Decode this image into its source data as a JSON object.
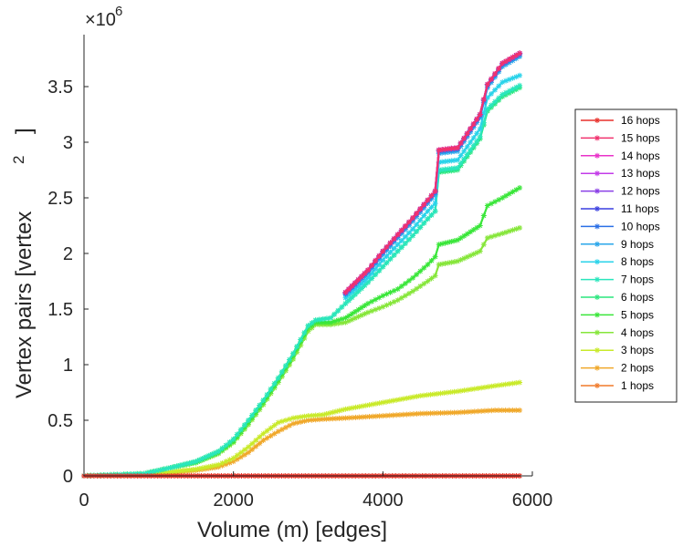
{
  "chart_data": {
    "type": "line",
    "xlabel": "Volume (m) [edges]",
    "ylabel": "Vertex pairs [vertex",
    "ylabel_superscript": "2",
    "ylabel_close": "]",
    "y_multiplier_base": "×10",
    "y_multiplier_exp": "6",
    "xlim": [
      0,
      6000
    ],
    "ylim": [
      0,
      3.95
    ],
    "xticks": [
      "0",
      "2000",
      "4000",
      "6000"
    ],
    "yticks": [
      "0",
      "0.5",
      "1",
      "1.5",
      "2",
      "2.5",
      "3",
      "3.5"
    ],
    "legend_placement": "outside-right",
    "series": [
      {
        "name": "16 hops",
        "color": "#e8312b",
        "x": [
          0,
          5830
        ],
        "y": [
          0,
          0
        ]
      },
      {
        "name": "15 hops",
        "color": "#f0326e",
        "x": [
          3500,
          3800,
          4000,
          4200,
          4400,
          4600,
          4700,
          4750,
          5000,
          5300,
          5400,
          5600,
          5830
        ],
        "y": [
          1.65,
          1.85,
          2.02,
          2.17,
          2.32,
          2.48,
          2.56,
          2.93,
          2.95,
          3.25,
          3.52,
          3.71,
          3.8
        ]
      },
      {
        "name": "14 hops",
        "color": "#e933c9",
        "x": [
          3500,
          3800,
          4000,
          4200,
          4400,
          4600,
          4700,
          4750,
          5000,
          5300,
          5400,
          5600,
          5830
        ],
        "y": [
          1.65,
          1.85,
          2.02,
          2.17,
          2.32,
          2.48,
          2.56,
          2.93,
          2.95,
          3.25,
          3.52,
          3.71,
          3.8
        ]
      },
      {
        "name": "13 hops",
        "color": "#c33be8",
        "x": [
          3500,
          3800,
          4000,
          4200,
          4400,
          4600,
          4700,
          4750,
          5000,
          5300,
          5400,
          5600,
          5830
        ],
        "y": [
          1.65,
          1.85,
          2.02,
          2.17,
          2.32,
          2.48,
          2.56,
          2.93,
          2.95,
          3.25,
          3.52,
          3.71,
          3.8
        ]
      },
      {
        "name": "12 hops",
        "color": "#8a3fe6",
        "x": [
          3500,
          3800,
          4000,
          4200,
          4400,
          4600,
          4700,
          4750,
          5000,
          5300,
          5400,
          5600,
          5830
        ],
        "y": [
          1.65,
          1.85,
          2.02,
          2.17,
          2.32,
          2.48,
          2.56,
          2.93,
          2.95,
          3.25,
          3.52,
          3.71,
          3.8
        ]
      },
      {
        "name": "11 hops",
        "color": "#3a3fe0",
        "x": [
          3500,
          3800,
          4000,
          4200,
          4400,
          4600,
          4700,
          4750,
          5000,
          5300,
          5400,
          5600,
          5830
        ],
        "y": [
          1.65,
          1.85,
          2.02,
          2.17,
          2.32,
          2.48,
          2.56,
          2.93,
          2.95,
          3.25,
          3.52,
          3.71,
          3.8
        ]
      },
      {
        "name": "10 hops",
        "color": "#2a6fe6",
        "x": [
          3500,
          3800,
          4000,
          4200,
          4400,
          4600,
          4700,
          4750,
          5000,
          5300,
          5400,
          5600,
          5830
        ],
        "y": [
          1.64,
          1.84,
          2.01,
          2.16,
          2.31,
          2.47,
          2.55,
          2.92,
          2.94,
          3.24,
          3.51,
          3.7,
          3.79
        ]
      },
      {
        "name": "9 hops",
        "color": "#2aa6ea",
        "x": [
          3500,
          3800,
          4000,
          4200,
          4400,
          4600,
          4700,
          4750,
          5000,
          5300,
          5400,
          5600,
          5830
        ],
        "y": [
          1.63,
          1.82,
          1.99,
          2.14,
          2.29,
          2.45,
          2.53,
          2.9,
          2.92,
          3.22,
          3.49,
          3.68,
          3.77
        ]
      },
      {
        "name": "8 hops",
        "color": "#2ad3ea",
        "x": [
          3500,
          3800,
          4000,
          4200,
          4400,
          4600,
          4700,
          4750,
          5000,
          5300,
          5400,
          5600,
          5830
        ],
        "y": [
          1.6,
          1.78,
          1.94,
          2.08,
          2.22,
          2.38,
          2.45,
          2.82,
          2.84,
          3.12,
          3.4,
          3.54,
          3.6
        ]
      },
      {
        "name": "7 hops",
        "color": "#2ae6bd",
        "x": [
          0,
          800,
          1200,
          1500,
          1800,
          2000,
          2200,
          2400,
          2600,
          2800,
          3000,
          3100,
          3300,
          3500,
          3800,
          4000,
          4200,
          4400,
          4600,
          4700,
          4750,
          5000,
          5300,
          5400,
          5600,
          5830
        ],
        "y": [
          0,
          0.02,
          0.08,
          0.13,
          0.22,
          0.33,
          0.5,
          0.68,
          0.88,
          1.1,
          1.35,
          1.4,
          1.42,
          1.55,
          1.74,
          1.88,
          2.02,
          2.16,
          2.31,
          2.38,
          2.75,
          2.77,
          3.05,
          3.3,
          3.43,
          3.51
        ]
      },
      {
        "name": "6 hops",
        "color": "#2ae67d",
        "x": [
          0,
          800,
          1200,
          1500,
          1800,
          2000,
          2200,
          2400,
          2600,
          2800,
          3000,
          3100,
          3300,
          3500,
          3800,
          4000,
          4200,
          4400,
          4600,
          4700,
          4750,
          5000,
          5300,
          5400,
          5600,
          5830
        ],
        "y": [
          0,
          0.02,
          0.08,
          0.13,
          0.22,
          0.33,
          0.5,
          0.68,
          0.88,
          1.1,
          1.35,
          1.4,
          1.42,
          1.55,
          1.74,
          1.88,
          2.02,
          2.16,
          2.31,
          2.38,
          2.73,
          2.75,
          3.03,
          3.28,
          3.41,
          3.49
        ]
      },
      {
        "name": "5 hops",
        "color": "#3ae63a",
        "x": [
          0,
          800,
          1200,
          1500,
          1800,
          2000,
          2200,
          2400,
          2600,
          2800,
          3000,
          3100,
          3300,
          3500,
          3800,
          4000,
          4200,
          4400,
          4600,
          4700,
          4750,
          5000,
          5300,
          5400,
          5600,
          5830
        ],
        "y": [
          0,
          0.02,
          0.08,
          0.12,
          0.21,
          0.31,
          0.48,
          0.66,
          0.86,
          1.08,
          1.33,
          1.38,
          1.38,
          1.42,
          1.55,
          1.62,
          1.68,
          1.78,
          1.9,
          1.97,
          2.08,
          2.12,
          2.25,
          2.43,
          2.5,
          2.59
        ]
      },
      {
        "name": "4 hops",
        "color": "#86e63a",
        "x": [
          0,
          800,
          1200,
          1500,
          1800,
          2000,
          2200,
          2400,
          2600,
          2800,
          3000,
          3100,
          3300,
          3500,
          3800,
          4000,
          4200,
          4400,
          4600,
          4700,
          4750,
          5000,
          5300,
          5400,
          5600,
          5830
        ],
        "y": [
          0,
          0.02,
          0.08,
          0.12,
          0.2,
          0.3,
          0.46,
          0.64,
          0.84,
          1.05,
          1.3,
          1.36,
          1.36,
          1.38,
          1.47,
          1.52,
          1.58,
          1.66,
          1.75,
          1.8,
          1.9,
          1.93,
          2.02,
          2.14,
          2.18,
          2.23
        ]
      },
      {
        "name": "3 hops",
        "color": "#c9ea2a",
        "x": [
          0,
          800,
          1200,
          1500,
          1800,
          2000,
          2200,
          2400,
          2600,
          2800,
          3000,
          3200,
          3500,
          4000,
          4500,
          5000,
          5500,
          5830
        ],
        "y": [
          0,
          0.01,
          0.04,
          0.06,
          0.1,
          0.16,
          0.26,
          0.38,
          0.48,
          0.52,
          0.54,
          0.55,
          0.6,
          0.66,
          0.72,
          0.76,
          0.81,
          0.84
        ]
      },
      {
        "name": "2 hops",
        "color": "#f0a82a",
        "x": [
          0,
          800,
          1200,
          1500,
          1800,
          2000,
          2200,
          2400,
          2600,
          2800,
          3000,
          3200,
          3500,
          4000,
          4500,
          5000,
          5500,
          5830
        ],
        "y": [
          0,
          0.01,
          0.03,
          0.05,
          0.08,
          0.13,
          0.21,
          0.32,
          0.4,
          0.47,
          0.5,
          0.51,
          0.52,
          0.54,
          0.56,
          0.57,
          0.59,
          0.59
        ]
      },
      {
        "name": "1 hops",
        "color": "#f07a2a",
        "x": [
          0,
          5830
        ],
        "y": [
          0,
          0
        ]
      }
    ]
  }
}
